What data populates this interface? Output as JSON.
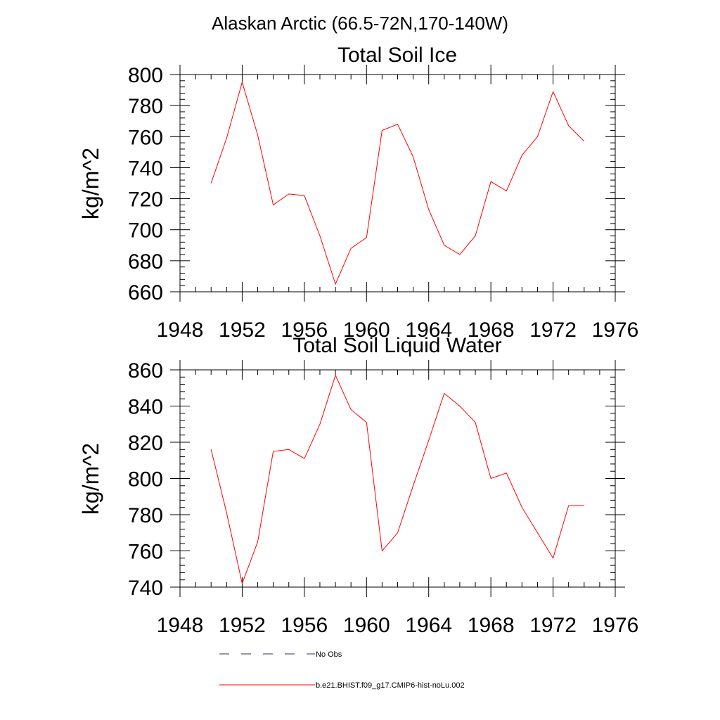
{
  "figure_title": "Alaskan Arctic (66.5-72N,170-140W)",
  "legend": {
    "obs_label": "No Obs",
    "model_label": "b.e21.BHIST.f09_g17.CMIP6-hist-noLu.002"
  },
  "colors": {
    "model_line": "#ff0000",
    "obs_line": "#2b2b6b",
    "axis": "#000000"
  },
  "chart_data": [
    {
      "type": "line",
      "title": "Total Soil Ice",
      "xlabel": "",
      "ylabel": "kg/m^2",
      "xlim": [
        1948,
        1976
      ],
      "ylim": [
        660,
        800
      ],
      "xticks": [
        1948,
        1952,
        1956,
        1960,
        1964,
        1968,
        1972,
        1976
      ],
      "yticks": [
        660,
        680,
        700,
        720,
        740,
        760,
        780,
        800
      ],
      "grid": false,
      "x": [
        1950,
        1951,
        1952,
        1953,
        1954,
        1955,
        1956,
        1957,
        1958,
        1959,
        1960,
        1961,
        1962,
        1963,
        1964,
        1965,
        1966,
        1967,
        1968,
        1969,
        1970,
        1971,
        1972,
        1973,
        1974
      ],
      "series": [
        {
          "name": "b.e21.BHIST.f09_g17.CMIP6-hist-noLu.002",
          "values": [
            730,
            759,
            795,
            761,
            716,
            723,
            722,
            696,
            665,
            688,
            695,
            764,
            768,
            747,
            713,
            690,
            684,
            696,
            731,
            725,
            748,
            760,
            789,
            767,
            757
          ]
        }
      ]
    },
    {
      "type": "line",
      "title": "Total Soil Liquid Water",
      "xlabel": "",
      "ylabel": "kg/m^2",
      "xlim": [
        1948,
        1976
      ],
      "ylim": [
        740,
        860
      ],
      "xticks": [
        1948,
        1952,
        1956,
        1960,
        1964,
        1968,
        1972,
        1976
      ],
      "yticks": [
        740,
        760,
        780,
        800,
        820,
        840,
        860
      ],
      "grid": false,
      "x": [
        1950,
        1951,
        1952,
        1953,
        1954,
        1955,
        1956,
        1957,
        1958,
        1959,
        1960,
        1961,
        1962,
        1963,
        1964,
        1965,
        1966,
        1967,
        1968,
        1969,
        1970,
        1971,
        1972,
        1973,
        1974
      ],
      "series": [
        {
          "name": "b.e21.BHIST.f09_g17.CMIP6-hist-noLu.002",
          "values": [
            816,
            781,
            742,
            765,
            815,
            816,
            811,
            830,
            857,
            838,
            831,
            760,
            770,
            796,
            821,
            847,
            840,
            831,
            800,
            803,
            784,
            770,
            756,
            785,
            785
          ]
        }
      ]
    }
  ]
}
